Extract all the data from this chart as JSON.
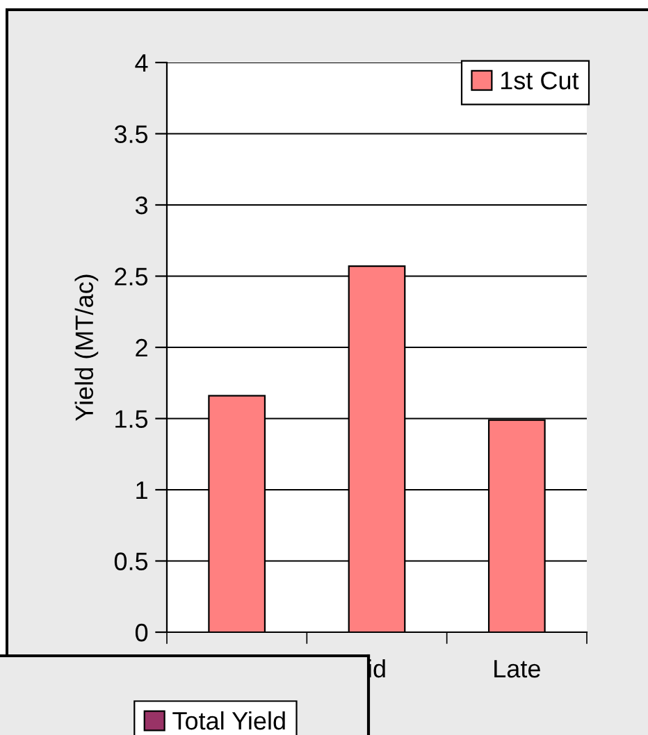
{
  "chart_data": [
    {
      "type": "bar",
      "ylabel": "Yield (MT/ac)",
      "categories": [
        null,
        "id",
        "Late"
      ],
      "series": [
        {
          "name": "1st Cut",
          "color": "#ff8080",
          "values": [
            1.66,
            2.57,
            1.49
          ]
        }
      ],
      "ylim": [
        0,
        4
      ],
      "yticks": [
        0,
        0.5,
        1,
        1.5,
        2,
        2.5,
        3,
        3.5,
        4
      ],
      "grid": "y",
      "legend": "top right"
    },
    {
      "type": "other",
      "series": [
        {
          "name": "Total Yield",
          "color": "#993366"
        }
      ],
      "legend": "top right"
    }
  ]
}
